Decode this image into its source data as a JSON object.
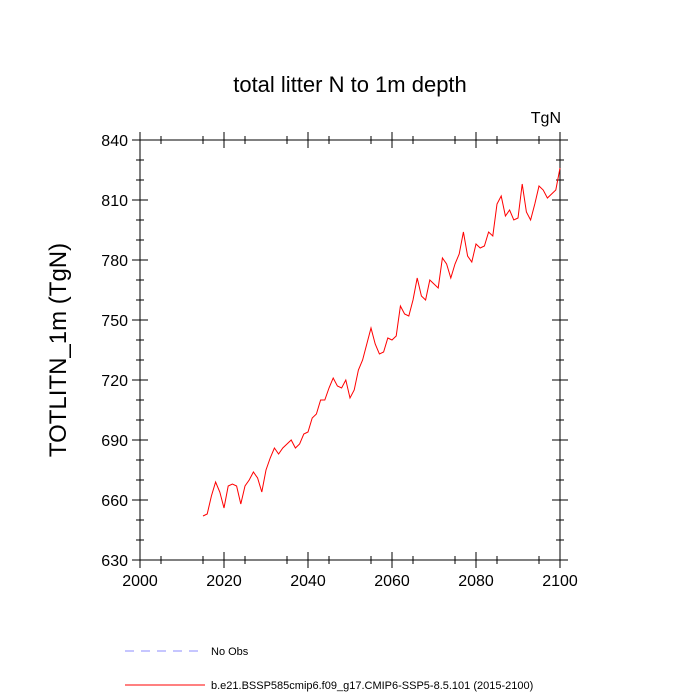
{
  "chart_data": {
    "type": "line",
    "title": "total litter N to 1m depth",
    "units_label": "TgN",
    "ylabel": "TOTLITN_1m  (TgN)",
    "xlabel": "",
    "xlim": [
      2000,
      2100
    ],
    "ylim": [
      630,
      840
    ],
    "x_ticks": [
      2000,
      2020,
      2040,
      2060,
      2080,
      2100
    ],
    "y_ticks": [
      630,
      660,
      690,
      720,
      750,
      780,
      810,
      840
    ],
    "grid": false,
    "legend_position": "bottom",
    "series": [
      {
        "name": "b.e21.BSSP585cmip6.f09_g17.CMIP6-SSP5-8.5.101 (2015-2100)",
        "color": "#ff0000",
        "style": "solid",
        "x": [
          2015,
          2016,
          2017,
          2018,
          2019,
          2020,
          2021,
          2022,
          2023,
          2024,
          2025,
          2026,
          2027,
          2028,
          2029,
          2030,
          2031,
          2032,
          2033,
          2034,
          2035,
          2036,
          2037,
          2038,
          2039,
          2040,
          2041,
          2042,
          2043,
          2044,
          2045,
          2046,
          2047,
          2048,
          2049,
          2050,
          2051,
          2052,
          2053,
          2054,
          2055,
          2056,
          2057,
          2058,
          2059,
          2060,
          2061,
          2062,
          2063,
          2064,
          2065,
          2066,
          2067,
          2068,
          2069,
          2070,
          2071,
          2072,
          2073,
          2074,
          2075,
          2076,
          2077,
          2078,
          2079,
          2080,
          2081,
          2082,
          2083,
          2084,
          2085,
          2086,
          2087,
          2088,
          2089,
          2090,
          2091,
          2092,
          2093,
          2094,
          2095,
          2096,
          2097,
          2098,
          2099,
          2100
        ],
        "y": [
          652,
          653,
          662,
          669,
          664,
          656,
          667,
          668,
          667,
          658,
          667,
          670,
          674,
          671,
          664,
          675,
          681,
          686,
          683,
          686,
          688,
          690,
          686,
          688,
          693,
          694,
          701,
          703,
          710,
          710,
          716,
          721,
          717,
          716,
          720,
          711,
          715,
          725,
          730,
          738,
          746,
          738,
          733,
          734,
          741,
          740,
          742,
          757,
          753,
          752,
          760,
          771,
          762,
          760,
          770,
          768,
          766,
          781,
          778,
          771,
          778,
          783,
          794,
          782,
          779,
          788,
          786,
          787,
          794,
          792,
          808,
          812,
          802,
          805,
          800,
          801,
          818,
          804,
          800,
          808,
          817,
          815,
          811,
          813,
          815,
          826
        ]
      },
      {
        "name": "No Obs",
        "color": "#8c8cff",
        "style": "dashed",
        "x": [],
        "y": []
      }
    ]
  }
}
